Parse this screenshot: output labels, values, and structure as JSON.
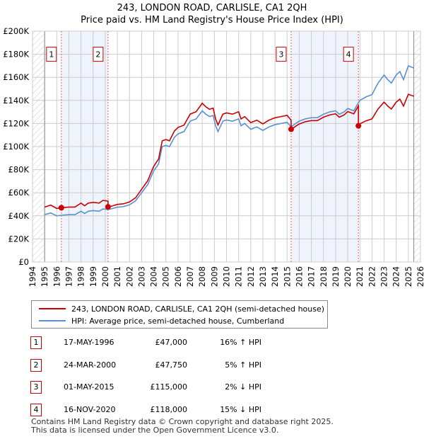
{
  "chart_data": {
    "type": "line",
    "title": "243, LONDON ROAD, CARLISLE, CA1 2QH",
    "subtitle": "Price paid vs. HM Land Registry's House Price Index (HPI)",
    "xlim": [
      1994,
      2026
    ],
    "ylim": [
      0,
      200000
    ],
    "x_ticks": [
      "1994",
      "1995",
      "1996",
      "1997",
      "1998",
      "1999",
      "2000",
      "2001",
      "2002",
      "2003",
      "2004",
      "2005",
      "2006",
      "2007",
      "2008",
      "2009",
      "2010",
      "2011",
      "2012",
      "2013",
      "2014",
      "2015",
      "2016",
      "2017",
      "2018",
      "2019",
      "2020",
      "2021",
      "2022",
      "2023",
      "2024",
      "2025",
      "2026"
    ],
    "y_ticks": [
      {
        "v": 0,
        "label": "£0"
      },
      {
        "v": 20000,
        "label": "£20K"
      },
      {
        "v": 40000,
        "label": "£40K"
      },
      {
        "v": 60000,
        "label": "£60K"
      },
      {
        "v": 80000,
        "label": "£80K"
      },
      {
        "v": 100000,
        "label": "£100K"
      },
      {
        "v": 120000,
        "label": "£120K"
      },
      {
        "v": 140000,
        "label": "£140K"
      },
      {
        "v": 160000,
        "label": "£160K"
      },
      {
        "v": 180000,
        "label": "£180K"
      },
      {
        "v": 200000,
        "label": "£200K"
      }
    ],
    "grid": true,
    "data_range": [
      1995,
      2025.45
    ],
    "hpi": {
      "name": "HPI: Average price, semi-detached house, Cumberland",
      "color": "#5b8fd4",
      "x": [
        1995,
        1995.5,
        1996,
        1996.38,
        1997,
        1997.5,
        1998,
        1998.3,
        1998.6,
        1999,
        1999.5,
        1999.8,
        2000.23,
        2000.5,
        2001,
        2001.5,
        2002,
        2002.5,
        2003,
        2003.5,
        2004,
        2004.4,
        2004.7,
        2005,
        2005.3,
        2005.7,
        2006,
        2006.5,
        2007,
        2007.5,
        2008,
        2008.3,
        2008.6,
        2008.9,
        2009.1,
        2009.3,
        2009.7,
        2010,
        2010.5,
        2011,
        2011.2,
        2011.5,
        2012,
        2012.5,
        2013,
        2013.5,
        2014,
        2014.5,
        2015,
        2015.33,
        2015.7,
        2016,
        2016.5,
        2017,
        2017.5,
        2018,
        2018.5,
        2019,
        2019.3,
        2019.7,
        2020,
        2020.5,
        2020.88,
        2021,
        2021.5,
        2022,
        2022.5,
        2023,
        2023.3,
        2023.6,
        2024,
        2024.3,
        2024.6,
        2025,
        2025.45
      ],
      "y": [
        41000,
        42500,
        40000,
        40500,
        41000,
        41000,
        44000,
        42000,
        44000,
        44500,
        44000,
        46000,
        45500,
        46000,
        47500,
        48000,
        49500,
        53000,
        60000,
        67000,
        79000,
        85000,
        100000,
        101000,
        100000,
        108000,
        111000,
        113000,
        122000,
        124000,
        131000,
        128000,
        126000,
        127000,
        118000,
        113000,
        122000,
        123000,
        122000,
        124000,
        118000,
        120000,
        115000,
        117000,
        114000,
        117000,
        119000,
        120000,
        121000,
        117000,
        120000,
        122000,
        124000,
        125000,
        125000,
        128000,
        130000,
        131000,
        128000,
        130000,
        133000,
        131000,
        138000,
        140000,
        143000,
        145000,
        155000,
        162000,
        158000,
        155000,
        162000,
        165000,
        158000,
        170000,
        168000
      ]
    },
    "price_paid": {
      "name": "243, LONDON ROAD, CARLISLE, CA1 2QH (semi-detached house)",
      "color": "#cc0000",
      "segment_starts": [
        1995,
        2000.23,
        2015.33,
        2020.88
      ],
      "hpi_ratio": [
        1.16,
        1.05,
        0.98,
        0.855
      ]
    },
    "sales": [
      {
        "n": "1",
        "x": 1996.38,
        "date": "17-MAY-1996",
        "price": 47000,
        "price_label": "£47,000",
        "hpi": "16% ↑ HPI"
      },
      {
        "n": "2",
        "x": 2000.23,
        "date": "24-MAR-2000",
        "price": 47750,
        "price_label": "£47,750",
        "hpi": "5% ↑ HPI"
      },
      {
        "n": "3",
        "x": 2015.33,
        "date": "01-MAY-2015",
        "price": 115000,
        "price_label": "£115,000",
        "hpi": "2% ↓ HPI"
      },
      {
        "n": "4",
        "x": 2020.88,
        "date": "16-NOV-2020",
        "price": 118000,
        "price_label": "£118,000",
        "hpi": "15% ↓ HPI"
      }
    ],
    "shaded_ranges": [
      [
        1996.38,
        2000.23
      ],
      [
        2015.33,
        2020.88
      ]
    ],
    "legend_placement": "below"
  },
  "footer": [
    "Contains HM Land Registry data © Crown copyright and database right 2025.",
    "This data is licensed under the Open Government Licence v3.0."
  ]
}
